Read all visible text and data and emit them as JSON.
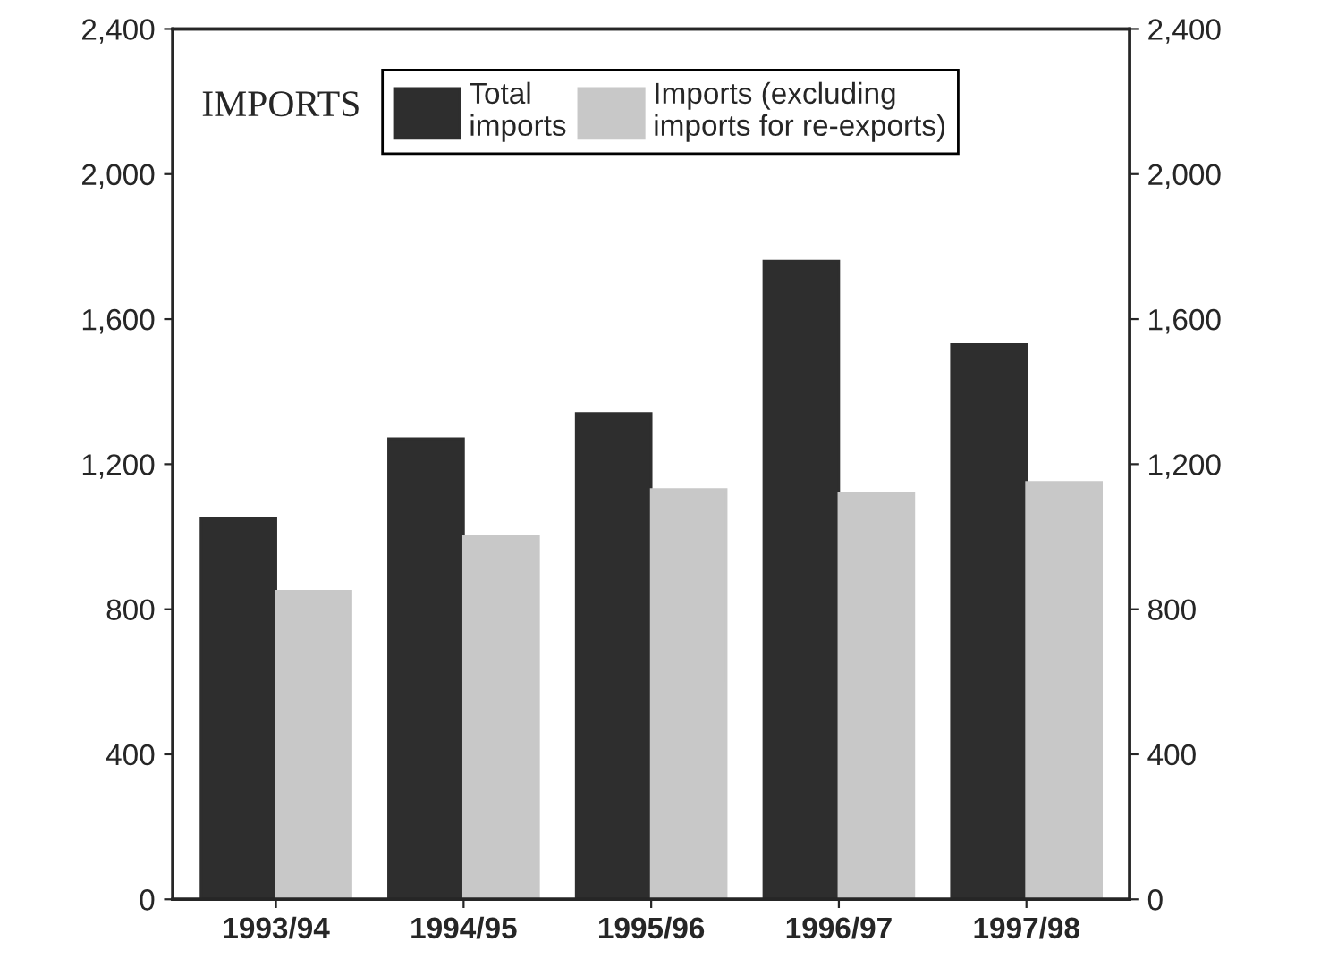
{
  "chart_data": {
    "type": "bar",
    "title": "IMPORTS",
    "categories": [
      "1993/94",
      "1994/95",
      "1995/96",
      "1996/97",
      "1997/98"
    ],
    "series": [
      {
        "name": "Total\nimports",
        "color": "#2e2e2e",
        "values": [
          1050,
          1270,
          1340,
          1760,
          1530
        ]
      },
      {
        "name": "Imports (excluding\nimports for re-exports)",
        "color": "#c8c8c8",
        "values": [
          850,
          1000,
          1130,
          1120,
          1150
        ]
      }
    ],
    "ylim": [
      0,
      2400
    ],
    "yticks": [
      {
        "value": 0,
        "label": "0"
      },
      {
        "value": 400,
        "label": "400"
      },
      {
        "value": 800,
        "label": "800"
      },
      {
        "value": 1200,
        "label": "1,200"
      },
      {
        "value": 1600,
        "label": "1,600"
      },
      {
        "value": 2000,
        "label": "2,000"
      },
      {
        "value": 2400,
        "label": "2,400"
      }
    ],
    "y2lim": [
      0,
      2400
    ],
    "y2ticks": [
      {
        "value": 0,
        "label": "0"
      },
      {
        "value": 400,
        "label": "400"
      },
      {
        "value": 800,
        "label": "800"
      },
      {
        "value": 1200,
        "label": "1,200"
      },
      {
        "value": 1600,
        "label": "1,600"
      },
      {
        "value": 2000,
        "label": "2,000"
      },
      {
        "value": 2400,
        "label": "2,400"
      }
    ],
    "legend": "top",
    "grid": false
  }
}
